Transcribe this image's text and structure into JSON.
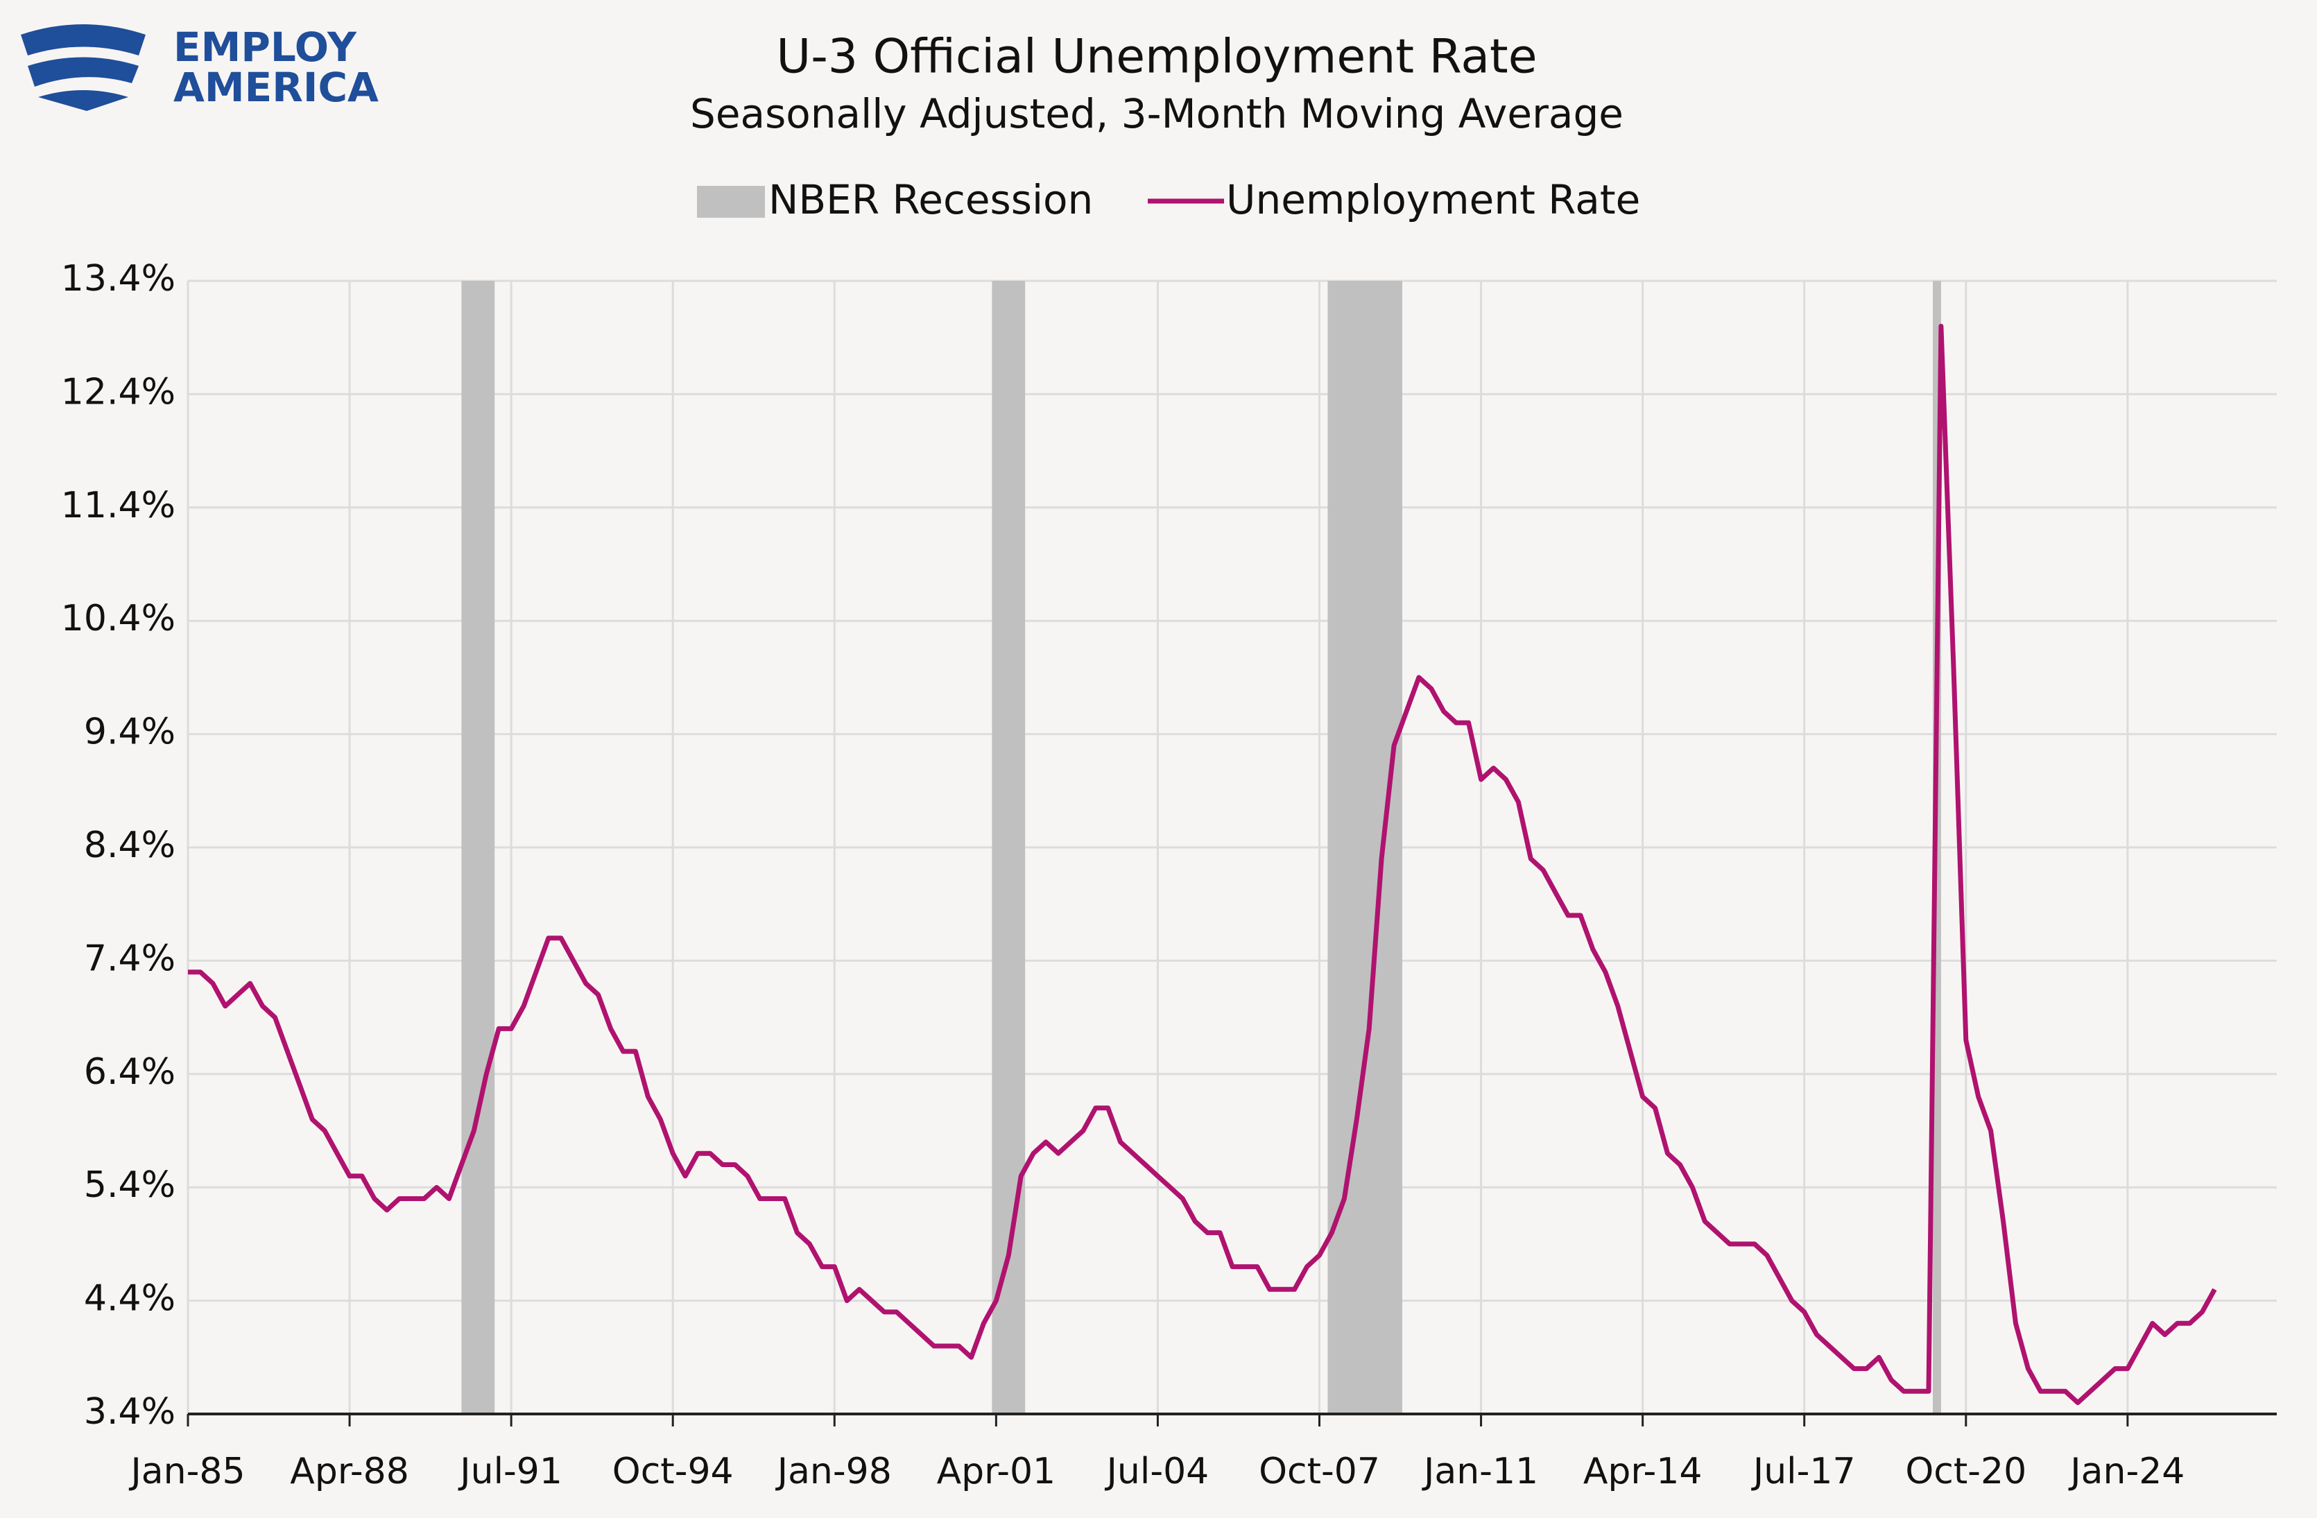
{
  "logo": {
    "line1": "EMPLOY",
    "line2": "AMERICA"
  },
  "chart_data": {
    "type": "line",
    "title": "U-3 Official Unemployment Rate",
    "subtitle": "Seasonally Adjusted, 3-Month Moving Average",
    "x": [
      "Jan-85",
      "Apr-85",
      "Jul-85",
      "Oct-85",
      "Jan-86",
      "Apr-86",
      "Jul-86",
      "Oct-86",
      "Jan-87",
      "Apr-87",
      "Jul-87",
      "Oct-87",
      "Jan-88",
      "Apr-88",
      "Jul-88",
      "Oct-88",
      "Jan-89",
      "Apr-89",
      "Jul-89",
      "Oct-89",
      "Jan-90",
      "Apr-90",
      "Jul-90",
      "Oct-90",
      "Jan-91",
      "Apr-91",
      "Jul-91",
      "Oct-91",
      "Jan-92",
      "Apr-92",
      "Jul-92",
      "Oct-92",
      "Jan-93",
      "Apr-93",
      "Jul-93",
      "Oct-93",
      "Jan-94",
      "Apr-94",
      "Jul-94",
      "Oct-94",
      "Jan-95",
      "Apr-95",
      "Jul-95",
      "Oct-95",
      "Jan-96",
      "Apr-96",
      "Jul-96",
      "Oct-96",
      "Jan-97",
      "Apr-97",
      "Jul-97",
      "Oct-97",
      "Jan-98",
      "Apr-98",
      "Jul-98",
      "Oct-98",
      "Jan-99",
      "Apr-99",
      "Jul-99",
      "Oct-99",
      "Jan-00",
      "Apr-00",
      "Jul-00",
      "Oct-00",
      "Jan-01",
      "Apr-01",
      "Jul-01",
      "Oct-01",
      "Jan-02",
      "Apr-02",
      "Jul-02",
      "Oct-02",
      "Jan-03",
      "Apr-03",
      "Jul-03",
      "Oct-03",
      "Jan-04",
      "Apr-04",
      "Jul-04",
      "Oct-04",
      "Jan-05",
      "Apr-05",
      "Jul-05",
      "Oct-05",
      "Jan-06",
      "Apr-06",
      "Jul-06",
      "Oct-06",
      "Jan-07",
      "Apr-07",
      "Jul-07",
      "Oct-07",
      "Jan-08",
      "Apr-08",
      "Jul-08",
      "Oct-08",
      "Jan-09",
      "Apr-09",
      "Jul-09",
      "Oct-09",
      "Jan-10",
      "Apr-10",
      "Jul-10",
      "Oct-10",
      "Jan-11",
      "Apr-11",
      "Jul-11",
      "Oct-11",
      "Jan-12",
      "Apr-12",
      "Jul-12",
      "Oct-12",
      "Jan-13",
      "Apr-13",
      "Jul-13",
      "Oct-13",
      "Jan-14",
      "Apr-14",
      "Jul-14",
      "Oct-14",
      "Jan-15",
      "Apr-15",
      "Jul-15",
      "Oct-15",
      "Jan-16",
      "Apr-16",
      "Jul-16",
      "Oct-16",
      "Jan-17",
      "Apr-17",
      "Jul-17",
      "Oct-17",
      "Jan-18",
      "Apr-18",
      "Jul-18",
      "Oct-18",
      "Jan-19",
      "Apr-19",
      "Jul-19",
      "Oct-19",
      "Jan-20",
      "Apr-20",
      "Jul-20",
      "Oct-20",
      "Jan-21",
      "Apr-21",
      "Jul-21",
      "Oct-21",
      "Jan-22",
      "Apr-22",
      "Jul-22",
      "Oct-22",
      "Jan-23",
      "Apr-23",
      "Jul-23",
      "Oct-23",
      "Jan-24",
      "Apr-24",
      "Jul-24",
      "Oct-24",
      "Jan-25",
      "Apr-25",
      "Jul-25",
      "Oct-25"
    ],
    "series": [
      {
        "name": "Unemployment Rate",
        "color": "#b0126f",
        "values": [
          7.3,
          7.3,
          7.2,
          7.0,
          7.1,
          7.2,
          7.0,
          6.9,
          6.6,
          6.3,
          6.0,
          5.9,
          5.7,
          5.5,
          5.5,
          5.3,
          5.2,
          5.3,
          5.3,
          5.3,
          5.4,
          5.3,
          5.6,
          5.9,
          6.4,
          6.8,
          6.8,
          7.0,
          7.3,
          7.6,
          7.6,
          7.4,
          7.2,
          7.1,
          6.8,
          6.6,
          6.6,
          6.2,
          6.0,
          5.7,
          5.5,
          5.7,
          5.7,
          5.6,
          5.6,
          5.5,
          5.3,
          5.3,
          5.3,
          5.0,
          4.9,
          4.7,
          4.7,
          4.4,
          4.5,
          4.4,
          4.3,
          4.3,
          4.2,
          4.1,
          4.0,
          4.0,
          4.0,
          3.9,
          4.2,
          4.4,
          4.8,
          5.5,
          5.7,
          5.8,
          5.7,
          5.8,
          5.9,
          6.1,
          6.1,
          5.8,
          5.7,
          5.6,
          5.5,
          5.4,
          5.3,
          5.1,
          5.0,
          5.0,
          4.7,
          4.7,
          4.7,
          4.5,
          4.5,
          4.5,
          4.7,
          4.8,
          5.0,
          5.3,
          6.0,
          6.8,
          8.3,
          9.3,
          9.6,
          9.9,
          9.8,
          9.6,
          9.5,
          9.5,
          9.0,
          9.1,
          9.0,
          8.8,
          8.3,
          8.2,
          8.0,
          7.8,
          7.8,
          7.5,
          7.3,
          7.0,
          6.6,
          6.2,
          6.1,
          5.7,
          5.6,
          5.4,
          5.1,
          5.0,
          4.9,
          4.9,
          4.9,
          4.8,
          4.6,
          4.4,
          4.3,
          4.1,
          4.0,
          3.9,
          3.8,
          3.8,
          3.9,
          3.7,
          3.6,
          3.6,
          3.6,
          13.0,
          10.0,
          6.7,
          6.2,
          5.9,
          5.1,
          4.2,
          3.8,
          3.6,
          3.6,
          3.6,
          3.5,
          3.6,
          3.7,
          3.8,
          3.8,
          4.0,
          4.2,
          4.1,
          4.2,
          4.2,
          4.3,
          4.5
        ]
      }
    ],
    "recessions": {
      "name": "NBER Recession",
      "color": "#c0c0c0",
      "periods": [
        [
          "Jul-90",
          "Mar-91"
        ],
        [
          "Mar-01",
          "Nov-01"
        ],
        [
          "Dec-07",
          "Jun-09"
        ],
        [
          "Feb-20",
          "Apr-20"
        ]
      ]
    },
    "xlim": [
      "Jan-85",
      "Jan-27"
    ],
    "xticks": [
      "Jan-85",
      "Apr-88",
      "Jul-91",
      "Oct-94",
      "Jan-98",
      "Apr-01",
      "Jul-04",
      "Oct-07",
      "Jan-11",
      "Apr-14",
      "Jul-17",
      "Oct-20",
      "Jan-24"
    ],
    "ylim": [
      3.4,
      13.4
    ],
    "yticks": [
      {
        "value": 3.4,
        "label": "3.4%"
      },
      {
        "value": 4.4,
        "label": "4.4%"
      },
      {
        "value": 5.4,
        "label": "5.4%"
      },
      {
        "value": 6.4,
        "label": "6.4%"
      },
      {
        "value": 7.4,
        "label": "7.4%"
      },
      {
        "value": 8.4,
        "label": "8.4%"
      },
      {
        "value": 9.4,
        "label": "9.4%"
      },
      {
        "value": 10.4,
        "label": "10.4%"
      },
      {
        "value": 11.4,
        "label": "11.4%"
      },
      {
        "value": 12.4,
        "label": "12.4%"
      },
      {
        "value": 13.4,
        "label": "13.4%"
      }
    ],
    "grid": true
  }
}
